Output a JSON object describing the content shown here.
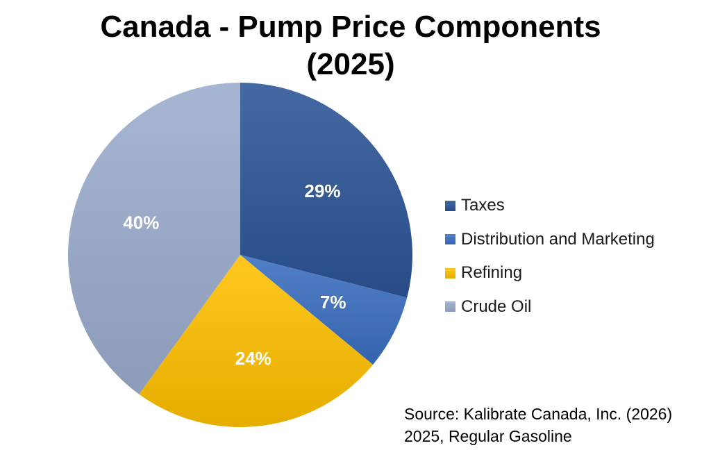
{
  "chart_data": {
    "type": "pie",
    "title_lines": [
      "Canada - Pump Price Components",
      "(2025)"
    ],
    "slices": [
      {
        "name": "Taxes",
        "value": 29,
        "label": "29%",
        "color": "#2b5496"
      },
      {
        "name": "Distribution and Marketing",
        "value": 7,
        "label": "7%",
        "color": "#3a6fc0"
      },
      {
        "name": "Refining",
        "value": 24,
        "label": "24%",
        "color": "#ffc000"
      },
      {
        "name": "Crude Oil",
        "value": 40,
        "label": "40%",
        "color": "#9aaccd"
      }
    ],
    "legend_position": "right",
    "start_angle_deg": 0,
    "direction": "clockwise"
  },
  "source": {
    "line1": "Source: Kalibrate Canada, Inc. (2026)",
    "line2": "2025, Regular Gasoline"
  }
}
